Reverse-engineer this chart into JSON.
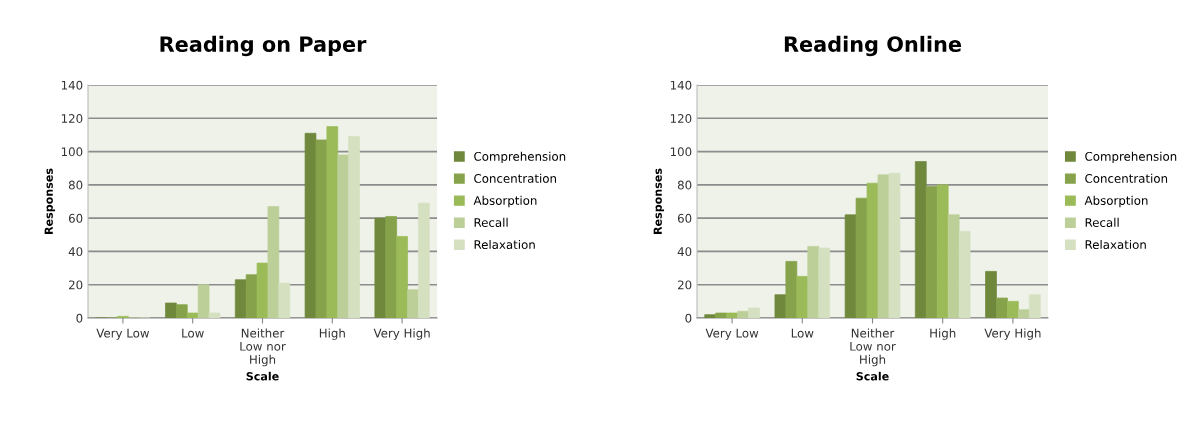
{
  "chart_data": [
    {
      "type": "bar",
      "title": "Reading on Paper",
      "xlabel": "Scale",
      "ylabel": "Responses",
      "categories": [
        "Very Low",
        "Low",
        "Neither\nLow nor\nHigh",
        "High",
        "Very High"
      ],
      "series": [
        {
          "name": "Comprehension",
          "color": "#70883c",
          "values": [
            0,
            9,
            23,
            111,
            60
          ]
        },
        {
          "name": "Concentration",
          "color": "#86a24a",
          "values": [
            0,
            8,
            26,
            107,
            61
          ]
        },
        {
          "name": "Absorption",
          "color": "#9bbb59",
          "values": [
            1,
            3,
            33,
            115,
            49
          ]
        },
        {
          "name": "Recall",
          "color": "#bccf98",
          "values": [
            0,
            20,
            67,
            98,
            17
          ]
        },
        {
          "name": "Relaxation",
          "color": "#d5e0c0",
          "values": [
            0,
            3,
            21,
            109,
            69
          ]
        }
      ],
      "ylim": [
        0,
        140
      ],
      "yticks": [
        0,
        20,
        40,
        60,
        80,
        100,
        120,
        140
      ],
      "grid": "y",
      "legend": "right"
    },
    {
      "type": "bar",
      "title": "Reading Online",
      "xlabel": "Scale",
      "ylabel": "Responses",
      "categories": [
        "Very Low",
        "Low",
        "Neither\nLow nor\nHigh",
        "High",
        "Very High"
      ],
      "series": [
        {
          "name": "Comprehension",
          "color": "#70883c",
          "values": [
            2,
            14,
            62,
            94,
            28
          ]
        },
        {
          "name": "Concentration",
          "color": "#86a24a",
          "values": [
            3,
            34,
            72,
            79,
            12
          ]
        },
        {
          "name": "Absorption",
          "color": "#9bbb59",
          "values": [
            3,
            25,
            81,
            80,
            10
          ]
        },
        {
          "name": "Recall",
          "color": "#bccf98",
          "values": [
            4,
            43,
            86,
            62,
            5
          ]
        },
        {
          "name": "Relaxation",
          "color": "#d5e0c0",
          "values": [
            6,
            42,
            87,
            52,
            14
          ]
        }
      ],
      "ylim": [
        0,
        140
      ],
      "yticks": [
        0,
        20,
        40,
        60,
        80,
        100,
        120,
        140
      ],
      "grid": "y",
      "legend": "right"
    }
  ]
}
